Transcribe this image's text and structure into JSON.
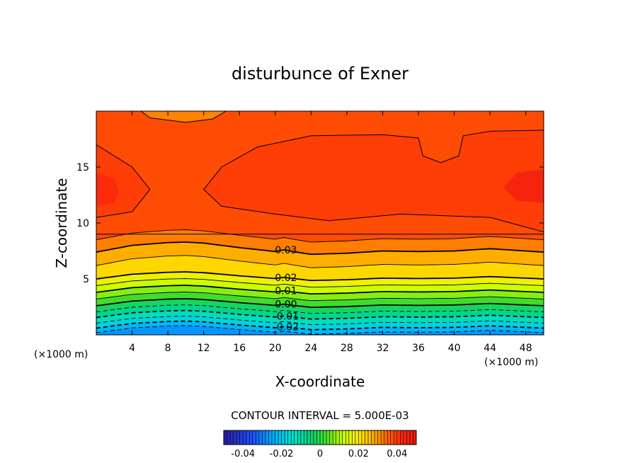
{
  "chart_data": {
    "type": "contour",
    "title": "disturbunce of Exner",
    "xlabel": "X-coordinate",
    "ylabel": "Z-coordinate",
    "x_unit_label": "(×1000 m)",
    "x_unit_label_right": "(×1000 m)",
    "xlim": [
      0,
      50
    ],
    "ylim": [
      0,
      20
    ],
    "x_ticks": [
      "4",
      "8",
      "12",
      "16",
      "20",
      "24",
      "28",
      "32",
      "36",
      "40",
      "44",
      "48"
    ],
    "y_ticks": [
      "5",
      "10",
      "15"
    ],
    "contour_interval_text": "CONTOUR INTERVAL = 5.000E-03",
    "contour_labels": [
      "0.03",
      "0.02",
      "0.01",
      "0.00",
      "-0.01",
      "-0.02"
    ],
    "colorbar": {
      "range": [
        -0.05,
        0.05
      ],
      "tick_labels": [
        "-0.04",
        "-0.02",
        "0",
        "0.02",
        "0.04"
      ]
    },
    "x_profile_points": [
      0,
      4,
      8,
      10,
      12,
      16,
      20,
      21,
      22,
      24,
      28,
      32,
      36,
      40,
      44,
      48,
      50
    ],
    "z_offset_km": [
      0,
      0.6,
      0.85,
      0.9,
      0.8,
      0.4,
      0.05,
      0.2,
      0.05,
      -0.2,
      -0.1,
      0.1,
      0.05,
      0.1,
      0.3,
      0.1,
      0
    ],
    "contour_levels_z_km": [
      {
        "level": 0.035,
        "z": 8.5
      },
      {
        "level": 0.03,
        "z": 7.4
      },
      {
        "level": 0.025,
        "z": 6.2
      },
      {
        "level": 0.02,
        "z": 5.0
      },
      {
        "level": 0.015,
        "z": 4.4
      },
      {
        "level": 0.01,
        "z": 3.8
      },
      {
        "level": 0.005,
        "z": 3.2
      },
      {
        "level": 0.0,
        "z": 2.6
      },
      {
        "level": -0.005,
        "z": 2.05
      },
      {
        "level": -0.01,
        "z": 1.55
      },
      {
        "level": -0.015,
        "z": 1.05
      },
      {
        "level": -0.02,
        "z": 0.6
      },
      {
        "level": -0.025,
        "z": 0.2
      }
    ],
    "max_region_level": 0.04
  }
}
